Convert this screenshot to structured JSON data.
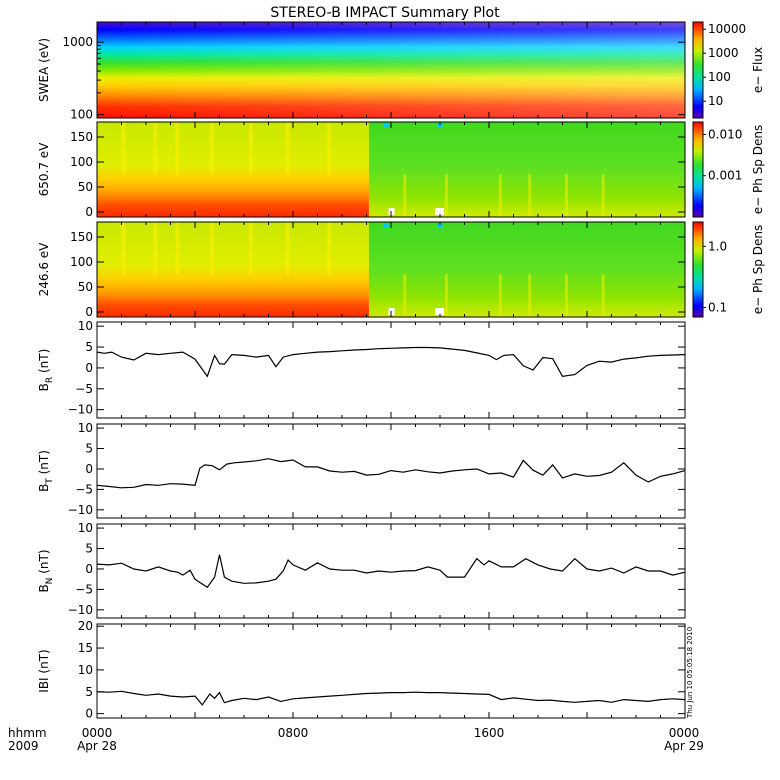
{
  "chart_data": [
    {
      "type": "heatmap",
      "panel": "swea",
      "title": "STEREO-B IMPACT Summary Plot",
      "ylabel": "SWEA (eV)",
      "yscale": "log",
      "ylim": [
        90,
        1900
      ],
      "yticks": [
        100,
        1000
      ],
      "ytick_labels": [
        "100",
        "1000"
      ],
      "colorbar": {
        "label": "e− Flux",
        "scale": "log",
        "range": [
          2,
          20000
        ],
        "ticks": [
          10,
          100,
          1000,
          10000
        ],
        "tick_labels": [
          "10",
          "100",
          "1000",
          "10000"
        ]
      }
    },
    {
      "type": "heatmap",
      "panel": "pa650",
      "ylabel": "650.7 eV",
      "ylim": [
        -10,
        180
      ],
      "yticks": [
        0,
        50,
        100,
        150
      ],
      "ytick_labels": [
        "0",
        "50",
        "100",
        "150"
      ],
      "colorbar": {
        "label": "e− Ph Sp Dens",
        "scale": "log",
        "range": [
          0.0001,
          0.02
        ],
        "ticks": [
          0.001,
          0.01
        ],
        "tick_labels": [
          "0.001",
          "0.010"
        ]
      }
    },
    {
      "type": "heatmap",
      "panel": "pa246",
      "ylabel": "246.6 eV",
      "ylim": [
        -10,
        180
      ],
      "yticks": [
        0,
        50,
        100,
        150
      ],
      "ytick_labels": [
        "0",
        "50",
        "100",
        "150"
      ],
      "colorbar": {
        "label": "e− Ph Sp Dens",
        "scale": "log",
        "range": [
          0.07,
          2.5
        ],
        "ticks": [
          0.1,
          1.0
        ],
        "tick_labels": [
          "0.1",
          "1.0"
        ]
      }
    },
    {
      "type": "line",
      "panel": "br",
      "ylabel": "B",
      "ylabel_sub": "R",
      "ylabel_unit": " (nT)",
      "ylim": [
        -12,
        11
      ],
      "yticks": [
        -10,
        -5,
        0,
        5,
        10
      ],
      "ytick_labels": [
        "−10",
        "−5",
        "0",
        "5",
        "10"
      ],
      "x": [
        0,
        0.3,
        0.6,
        1,
        1.5,
        2,
        2.5,
        3,
        3.5,
        4,
        4.5,
        4.8,
        5,
        5.2,
        5.5,
        6,
        6.5,
        7,
        7.3,
        7.6,
        8,
        8.5,
        9,
        9.5,
        10,
        10.5,
        11,
        11.5,
        12,
        12.5,
        13,
        13.5,
        14,
        14.5,
        15,
        15.5,
        16,
        16.3,
        16.6,
        17,
        17.4,
        17.8,
        18.2,
        18.6,
        19,
        19.5,
        20,
        20.5,
        21,
        21.5,
        22,
        22.5,
        23,
        23.5,
        24
      ],
      "values": [
        3.8,
        3.5,
        3.8,
        2.6,
        1.9,
        3.5,
        3.2,
        3.5,
        3.8,
        2.1,
        -2.0,
        3.0,
        1.0,
        0.9,
        3.2,
        3.0,
        2.6,
        3.0,
        0.3,
        2.6,
        3.2,
        3.5,
        3.8,
        3.9,
        4.1,
        4.3,
        4.4,
        4.6,
        4.7,
        4.8,
        4.9,
        4.9,
        4.8,
        4.5,
        4.2,
        3.6,
        3.0,
        2.0,
        3.0,
        3.2,
        0.5,
        -0.5,
        2.5,
        2.2,
        -2.0,
        -1.6,
        0.6,
        1.6,
        1.4,
        2.1,
        2.4,
        2.8,
        3.0,
        3.1,
        3.2
      ]
    },
    {
      "type": "line",
      "panel": "bt",
      "ylabel": "B",
      "ylabel_sub": "T",
      "ylabel_unit": " (nT)",
      "ylim": [
        -12,
        11
      ],
      "yticks": [
        -10,
        -5,
        0,
        5,
        10
      ],
      "ytick_labels": [
        "−10",
        "−5",
        "0",
        "5",
        "10"
      ],
      "x": [
        0,
        0.5,
        1,
        1.5,
        2,
        2.5,
        3,
        3.5,
        4,
        4.2,
        4.4,
        4.7,
        5,
        5.3,
        5.6,
        6,
        6.5,
        7,
        7.5,
        8,
        8.5,
        9,
        9.5,
        10,
        10.5,
        11,
        11.5,
        12,
        12.5,
        13,
        13.5,
        14,
        14.5,
        15,
        15.5,
        16,
        16.5,
        17,
        17.4,
        17.8,
        18.2,
        18.6,
        19,
        19.5,
        20,
        20.5,
        21,
        21.5,
        22,
        22.5,
        23,
        23.5,
        24
      ],
      "values": [
        -4,
        -4.3,
        -4.6,
        -4.5,
        -3.8,
        -4.0,
        -3.6,
        -3.7,
        -4.0,
        0.2,
        1.0,
        0.8,
        -0.2,
        1.2,
        1.5,
        1.7,
        2.0,
        2.5,
        1.8,
        2.2,
        0.5,
        0.5,
        -0.5,
        -0.8,
        -0.6,
        -1.5,
        -1.3,
        -0.4,
        -0.8,
        -0.2,
        -0.7,
        -1.0,
        -0.5,
        -0.2,
        0,
        -1.2,
        -1.0,
        -2.0,
        2.1,
        -0.3,
        -1.5,
        1.0,
        -2.2,
        -1.2,
        -1.8,
        -1.6,
        -0.8,
        1.5,
        -1.5,
        -3.2,
        -1.8,
        -1.2,
        -0.4
      ]
    },
    {
      "type": "line",
      "panel": "bn",
      "ylabel": "B",
      "ylabel_sub": "N",
      "ylabel_unit": " (nT)",
      "ylim": [
        -12,
        11
      ],
      "yticks": [
        -10,
        -5,
        0,
        5,
        10
      ],
      "ytick_labels": [
        "−10",
        "−5",
        "0",
        "5",
        "10"
      ],
      "x": [
        0,
        0.5,
        1,
        1.5,
        2,
        2.5,
        3,
        3.3,
        3.5,
        3.8,
        4,
        4.5,
        4.8,
        5,
        5.2,
        5.5,
        6,
        6.5,
        7,
        7.3,
        7.6,
        7.8,
        8,
        8.5,
        9,
        9.5,
        10,
        10.5,
        11,
        11.5,
        12,
        12.5,
        13,
        13.5,
        14,
        14.3,
        14.5,
        15,
        15.5,
        15.8,
        16,
        16.5,
        17,
        17.5,
        18,
        18.5,
        19,
        19.5,
        20,
        20.5,
        21,
        21.5,
        22,
        22.5,
        23,
        23.5,
        24
      ],
      "values": [
        1.2,
        1.0,
        1.4,
        0,
        -0.5,
        0.5,
        -0.5,
        -0.8,
        -1.5,
        -0.3,
        -2.5,
        -4.5,
        -2.0,
        3.5,
        -2.0,
        -3.0,
        -3.5,
        -3.4,
        -3.0,
        -2.5,
        -0.5,
        2.2,
        1.0,
        -0.3,
        1.5,
        0,
        -0.3,
        -0.3,
        -1.0,
        -0.5,
        -0.8,
        -0.5,
        -0.4,
        0.5,
        -0.3,
        -2.0,
        -2.0,
        -2.0,
        2.5,
        1.0,
        2.0,
        0.5,
        0.5,
        2.5,
        1.0,
        0,
        -0.5,
        2.5,
        0,
        -0.5,
        0.2,
        -1.0,
        0.5,
        -0.5,
        -0.5,
        -1.5,
        -0.8
      ]
    },
    {
      "type": "line",
      "panel": "bmag",
      "ylabel": "IBI (nT)",
      "ylim": [
        -1,
        20.5
      ],
      "yticks": [
        0,
        5,
        10,
        15,
        20
      ],
      "ytick_labels": [
        "0",
        "5",
        "10",
        "15",
        "20"
      ],
      "x": [
        0,
        0.5,
        1,
        1.5,
        2,
        2.5,
        3,
        3.5,
        4,
        4.3,
        4.6,
        4.8,
        5,
        5.2,
        5.5,
        6,
        6.5,
        7,
        7.5,
        8,
        8.5,
        9,
        9.5,
        10,
        10.5,
        11,
        11.5,
        12,
        12.5,
        13,
        13.5,
        14,
        14.5,
        15,
        15.5,
        16,
        16.5,
        17,
        17.5,
        18,
        18.5,
        19,
        19.5,
        20,
        20.5,
        21,
        21.5,
        22,
        22.5,
        23,
        23.5,
        24
      ],
      "values": [
        5.0,
        4.9,
        5.1,
        4.6,
        4.2,
        4.5,
        4.0,
        3.8,
        4.0,
        2.0,
        4.5,
        3.5,
        4.8,
        2.5,
        3.0,
        3.5,
        3.2,
        3.8,
        2.8,
        3.4,
        3.6,
        3.8,
        4.0,
        4.2,
        4.4,
        4.6,
        4.7,
        4.8,
        4.8,
        4.9,
        4.8,
        4.8,
        4.7,
        4.6,
        4.5,
        4.4,
        3.2,
        3.6,
        3.3,
        3.0,
        3.1,
        2.8,
        2.6,
        2.8,
        3.0,
        2.6,
        3.2,
        3.0,
        2.8,
        3.2,
        3.4,
        3.2
      ]
    }
  ],
  "footer": {
    "time_label": "hhmm",
    "year_label": "2009",
    "x_ticks": [
      "0000",
      "0800",
      "1600",
      "0000"
    ],
    "date_left": "Apr 28",
    "date_right": "Apr 29",
    "timestamp": "Thu Jun 10 05:05:18 2010"
  }
}
